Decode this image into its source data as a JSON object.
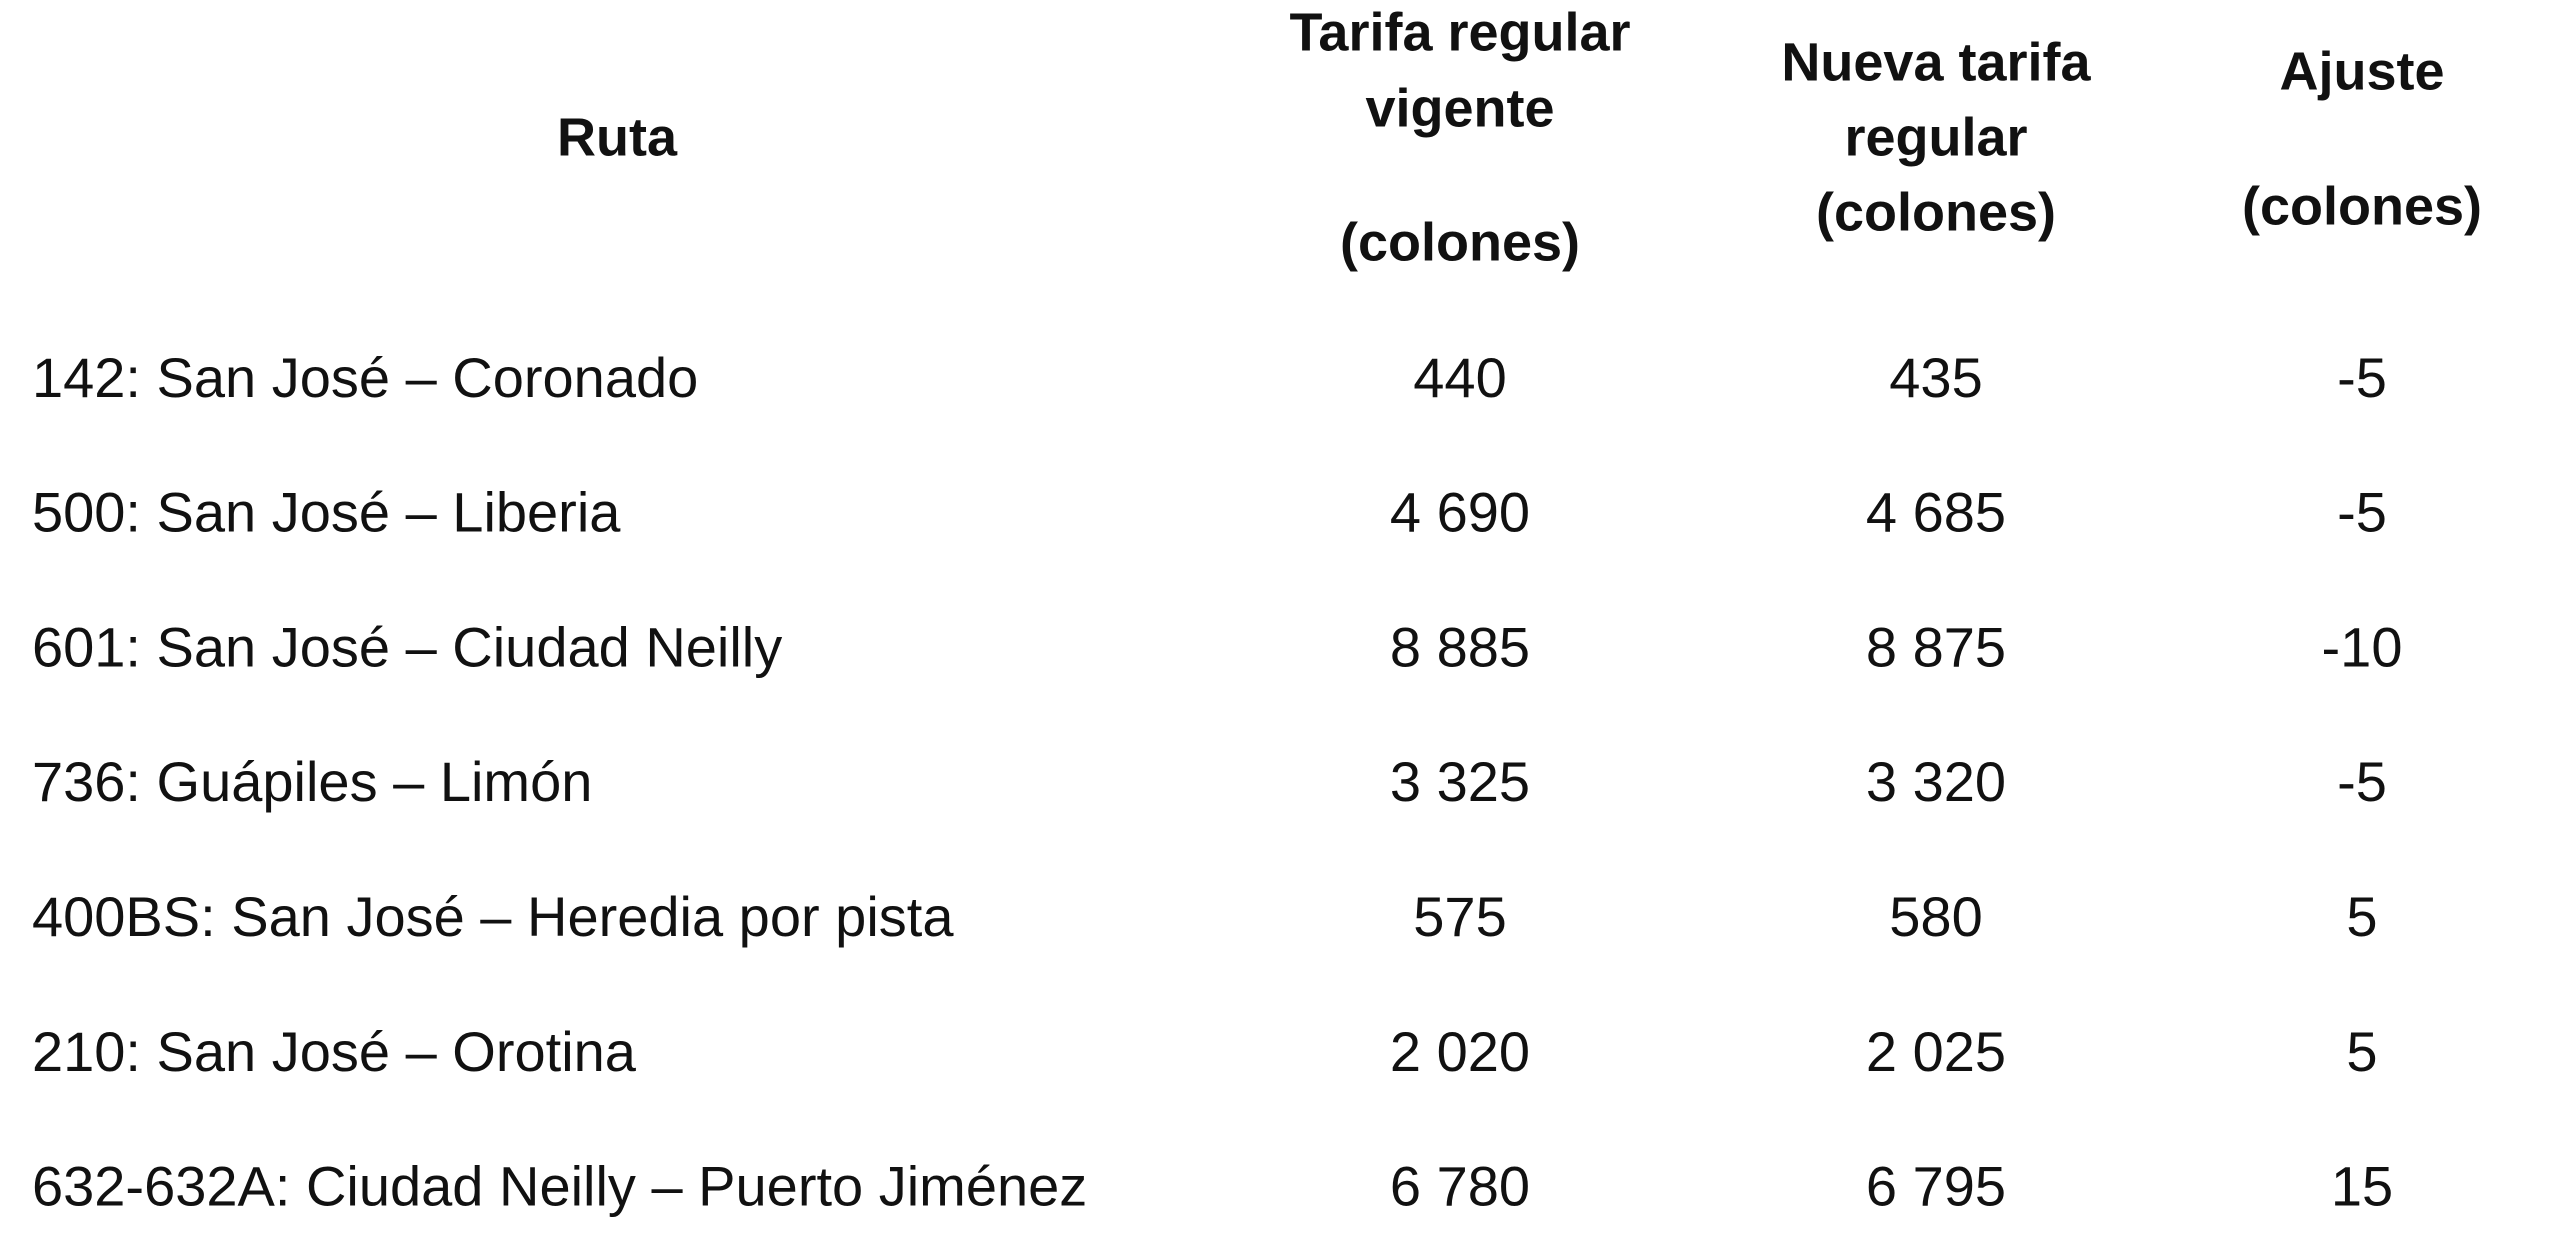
{
  "table": {
    "columns": [
      {
        "lines": [
          "Ruta"
        ]
      },
      {
        "lines": [
          "Tarifa regular",
          "vigente",
          "(colones)"
        ]
      },
      {
        "lines": [
          "Nueva tarifa",
          "regular",
          "(colones)"
        ]
      },
      {
        "lines": [
          "Ajuste",
          "(colones)"
        ]
      }
    ],
    "rows": [
      [
        "142: San José – Coronado",
        "440",
        "435",
        "-5"
      ],
      [
        "500: San José – Liberia",
        "4 690",
        "4 685",
        "-5"
      ],
      [
        "601: San José – Ciudad Neilly",
        "8 885",
        "8 875",
        "-10"
      ],
      [
        "736: Guápiles – Limón",
        "3 325",
        "3 320",
        "-5"
      ],
      [
        "400BS: San José – Heredia por pista",
        "575",
        "580",
        "5"
      ],
      [
        "210: San José – Orotina",
        "2 020",
        "2 025",
        "5"
      ],
      [
        "632-632A: Ciudad Neilly – Puerto Jiménez",
        "6 780",
        "6 795",
        "15"
      ]
    ]
  }
}
